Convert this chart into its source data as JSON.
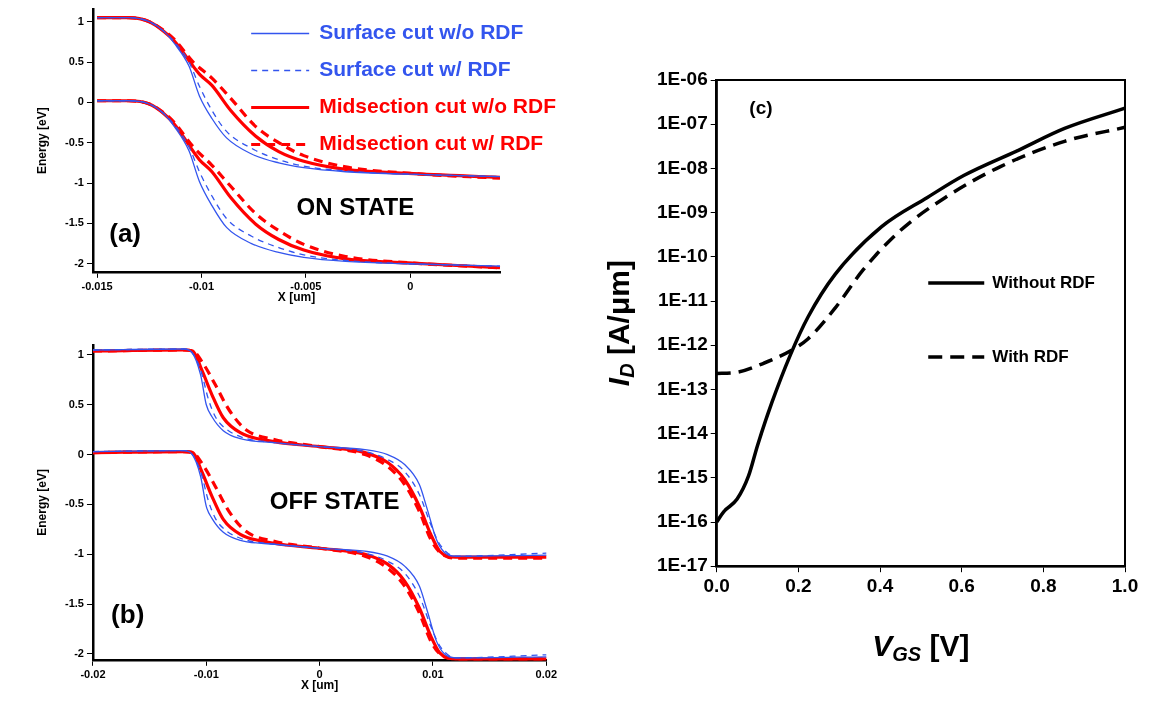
{
  "chart_data": [
    {
      "type": "line",
      "xlabel": "X [um]",
      "ylabel": "Energy [eV]",
      "legend": "top right",
      "grid": false,
      "annotations": [
        "(a)",
        "ON STATE"
      ],
      "xlim": [
        -0.0152,
        0.0043
      ],
      "xticks": [
        -0.015,
        -0.01,
        -0.005,
        0
      ],
      "ylim": [
        -2.1,
        1.15
      ],
      "yticks": [
        -2,
        -1.5,
        -1,
        -0.5,
        0,
        0.5,
        1
      ],
      "series": [
        {
          "name": "Surface cut w/o RDF",
          "color": "#3355ee",
          "line_style": "solid",
          "x": [
            -0.015,
            -0.0135,
            -0.0125,
            -0.0118,
            -0.0113,
            -0.0106,
            -0.0101,
            -0.0095,
            -0.0088,
            -0.0076,
            -0.0063,
            -0.0051,
            -0.0031,
            -0.0001,
            0.0043
          ],
          "values": [
            1.05,
            1.05,
            1.0,
            0.88,
            0.73,
            0.45,
            0.08,
            -0.2,
            -0.44,
            -0.64,
            -0.75,
            -0.81,
            -0.86,
            -0.89,
            -0.92
          ]
        },
        {
          "name": "Surface cut w/ RDF",
          "color": "#3355ee",
          "line_style": "dashed",
          "x": [
            -0.015,
            -0.0135,
            -0.0125,
            -0.0118,
            -0.0113,
            -0.0106,
            -0.0101,
            -0.0095,
            -0.0088,
            -0.0076,
            -0.0063,
            -0.0051,
            -0.0031,
            -0.0001,
            0.0043
          ],
          "values": [
            1.05,
            1.05,
            1.0,
            0.88,
            0.75,
            0.5,
            0.2,
            -0.1,
            -0.36,
            -0.57,
            -0.71,
            -0.79,
            -0.85,
            -0.89,
            -0.92
          ]
        },
        {
          "name": "Midsection cut w/o RDF",
          "color": "#ff0000",
          "line_style": "solid",
          "x": [
            -0.015,
            -0.0135,
            -0.0125,
            -0.0118,
            -0.0113,
            -0.0101,
            -0.0095,
            -0.0086,
            -0.0074,
            -0.0063,
            -0.0051,
            -0.0031,
            -0.0001,
            0.0043
          ],
          "values": [
            1.05,
            1.05,
            1.0,
            0.88,
            0.76,
            0.35,
            0.21,
            -0.1,
            -0.42,
            -0.61,
            -0.73,
            -0.83,
            -0.88,
            -0.93
          ]
        },
        {
          "name": "Midsection cut w/ RDF",
          "color": "#ff0000",
          "line_style": "dashed",
          "x": [
            -0.015,
            -0.0135,
            -0.0125,
            -0.0118,
            -0.0113,
            -0.0104,
            -0.0095,
            -0.0086,
            -0.0074,
            -0.0063,
            -0.0051,
            -0.0031,
            0,
            0.0043
          ],
          "values": [
            1.05,
            1.05,
            1.0,
            0.89,
            0.78,
            0.5,
            0.3,
            0.05,
            -0.3,
            -0.5,
            -0.66,
            -0.8,
            -0.88,
            -0.94
          ]
        },
        {
          "color": "#3355ee",
          "line_style": "solid",
          "x": [
            -0.015,
            -0.0135,
            -0.0125,
            -0.0118,
            -0.0113,
            -0.0106,
            -0.0101,
            -0.0095,
            -0.0088,
            -0.0076,
            -0.0063,
            -0.0051,
            -0.0031,
            -0.0001,
            0.0043
          ],
          "values": [
            0.02,
            0.02,
            -0.02,
            -0.14,
            -0.3,
            -0.6,
            -0.98,
            -1.28,
            -1.55,
            -1.75,
            -1.86,
            -1.92,
            -1.97,
            -2.0,
            -2.03
          ]
        },
        {
          "color": "#3355ee",
          "line_style": "dashed",
          "x": [
            -0.015,
            -0.0135,
            -0.0125,
            -0.0118,
            -0.0113,
            -0.0106,
            -0.0101,
            -0.0095,
            -0.0088,
            -0.0076,
            -0.0063,
            -0.0051,
            -0.0031,
            -0.0001,
            0.0043
          ],
          "values": [
            0.02,
            0.02,
            -0.02,
            -0.14,
            -0.28,
            -0.55,
            -0.86,
            -1.16,
            -1.44,
            -1.66,
            -1.8,
            -1.89,
            -1.96,
            -2.0,
            -2.03
          ]
        },
        {
          "color": "#ff0000",
          "line_style": "solid",
          "x": [
            -0.015,
            -0.0135,
            -0.0125,
            -0.0118,
            -0.0113,
            -0.0101,
            -0.0095,
            -0.0086,
            -0.0074,
            -0.0063,
            -0.0051,
            -0.0031,
            -0.0001,
            0.0043
          ],
          "values": [
            0.02,
            0.02,
            -0.02,
            -0.14,
            -0.27,
            -0.71,
            -0.86,
            -1.18,
            -1.51,
            -1.7,
            -1.83,
            -1.94,
            -1.99,
            -2.05
          ]
        },
        {
          "color": "#ff0000",
          "line_style": "dashed",
          "x": [
            -0.015,
            -0.0135,
            -0.0125,
            -0.0118,
            -0.0113,
            -0.0104,
            -0.0095,
            -0.0086,
            -0.0074,
            -0.0063,
            -0.0051,
            -0.0031,
            0,
            0.0043
          ],
          "values": [
            0.02,
            0.02,
            -0.02,
            -0.13,
            -0.25,
            -0.55,
            -0.78,
            -1.04,
            -1.38,
            -1.59,
            -1.76,
            -1.91,
            -1.99,
            -2.05
          ]
        }
      ]
    },
    {
      "type": "line",
      "xlabel": "X [um]",
      "ylabel": "Energy [eV]",
      "grid": false,
      "annotations": [
        "(b)",
        "OFF STATE"
      ],
      "xlim": [
        -0.02,
        0.02
      ],
      "xticks": [
        -0.02,
        -0.01,
        0,
        0.01,
        0.02
      ],
      "ylim": [
        -2.06,
        1.1
      ],
      "yticks": [
        -2,
        -1.5,
        -1,
        -0.5,
        0,
        0.5,
        1
      ],
      "series": [
        {
          "color": "#3355ee",
          "line_style": "solid",
          "x": [
            -0.02,
            -0.012,
            -0.0113,
            -0.0105,
            -0.01,
            -0.0095,
            -0.0085,
            -0.007,
            -0.004,
            0,
            0.004,
            0.006,
            0.0075,
            0.0088,
            0.0095,
            0.0103,
            0.011,
            0.012,
            0.02
          ],
          "values": [
            1.05,
            1.06,
            1.03,
            0.8,
            0.5,
            0.38,
            0.24,
            0.16,
            0.12,
            0.08,
            0.05,
            0,
            -0.1,
            -0.3,
            -0.55,
            -0.85,
            -0.98,
            -1.02,
            -1.01
          ]
        },
        {
          "color": "#3355ee",
          "line_style": "dashed",
          "x": [
            -0.02,
            -0.012,
            -0.0113,
            -0.0105,
            -0.0098,
            -0.0092,
            -0.0085,
            -0.007,
            -0.004,
            0,
            0.004,
            0.006,
            0.0075,
            0.0088,
            0.0098,
            0.0106,
            0.012,
            0.02
          ],
          "values": [
            1.05,
            1.06,
            1.03,
            0.85,
            0.55,
            0.38,
            0.28,
            0.18,
            0.12,
            0.08,
            0.03,
            -0.05,
            -0.17,
            -0.4,
            -0.7,
            -0.9,
            -1.02,
            -0.99
          ]
        },
        {
          "color": "#ff0000",
          "line_style": "solid",
          "x": [
            -0.02,
            -0.012,
            -0.0112,
            -0.0104,
            -0.0095,
            -0.0085,
            -0.007,
            -0.004,
            0,
            0.004,
            0.006,
            0.0075,
            0.0088,
            0.0098,
            0.0106,
            0.012,
            0.02
          ],
          "values": [
            1.04,
            1.05,
            1.04,
            0.85,
            0.6,
            0.37,
            0.22,
            0.13,
            0.08,
            0.02,
            -0.08,
            -0.25,
            -0.52,
            -0.8,
            -0.97,
            -1.03,
            -1.03
          ]
        },
        {
          "color": "#ff0000",
          "line_style": "dashed",
          "x": [
            -0.02,
            -0.012,
            -0.0112,
            -0.0102,
            -0.0092,
            -0.008,
            -0.0065,
            -0.004,
            0,
            0.004,
            0.006,
            0.0075,
            0.0088,
            0.0098,
            0.0106,
            0.012,
            0.02
          ],
          "values": [
            1.04,
            1.05,
            1.04,
            0.9,
            0.7,
            0.45,
            0.25,
            0.15,
            0.08,
            0,
            -0.12,
            -0.3,
            -0.57,
            -0.85,
            -0.98,
            -1.04,
            -1.04
          ]
        },
        {
          "color": "#3355ee",
          "line_style": "solid",
          "x": [
            -0.02,
            -0.012,
            -0.0113,
            -0.0105,
            -0.01,
            -0.0095,
            -0.0085,
            -0.007,
            -0.004,
            0,
            0.004,
            0.006,
            0.0075,
            0.0088,
            0.0095,
            0.0103,
            0.011,
            0.012,
            0.02
          ],
          "values": [
            0.03,
            0.04,
            0.01,
            -0.22,
            -0.52,
            -0.64,
            -0.78,
            -0.86,
            -0.9,
            -0.94,
            -0.97,
            -1.02,
            -1.12,
            -1.32,
            -1.57,
            -1.87,
            -2.0,
            -2.04,
            -2.03
          ]
        },
        {
          "color": "#3355ee",
          "line_style": "dashed",
          "x": [
            -0.02,
            -0.012,
            -0.0113,
            -0.0105,
            -0.0098,
            -0.0092,
            -0.0085,
            -0.007,
            -0.004,
            0,
            0.004,
            0.006,
            0.0075,
            0.0088,
            0.0098,
            0.0106,
            0.012,
            0.02
          ],
          "values": [
            0.03,
            0.04,
            0.01,
            -0.17,
            -0.47,
            -0.64,
            -0.74,
            -0.84,
            -0.9,
            -0.94,
            -0.99,
            -1.07,
            -1.19,
            -1.42,
            -1.72,
            -1.92,
            -2.04,
            -2.01
          ]
        },
        {
          "color": "#ff0000",
          "line_style": "solid",
          "x": [
            -0.02,
            -0.012,
            -0.0112,
            -0.0104,
            -0.0095,
            -0.0085,
            -0.007,
            -0.004,
            0,
            0.004,
            0.006,
            0.0075,
            0.0088,
            0.0098,
            0.0106,
            0.012,
            0.02
          ],
          "values": [
            0.02,
            0.03,
            0.02,
            -0.17,
            -0.42,
            -0.65,
            -0.8,
            -0.89,
            -0.94,
            -1.0,
            -1.1,
            -1.27,
            -1.54,
            -1.82,
            -1.99,
            -2.05,
            -2.05
          ]
        },
        {
          "color": "#ff0000",
          "line_style": "dashed",
          "x": [
            -0.02,
            -0.012,
            -0.0112,
            -0.0102,
            -0.0092,
            -0.008,
            -0.0065,
            -0.004,
            0,
            0.004,
            0.006,
            0.0075,
            0.0088,
            0.0098,
            0.0106,
            0.012,
            0.02
          ],
          "values": [
            0.02,
            0.03,
            0.02,
            -0.12,
            -0.32,
            -0.57,
            -0.77,
            -0.87,
            -0.94,
            -1.02,
            -1.14,
            -1.32,
            -1.59,
            -1.87,
            -2.0,
            -2.05,
            -2.05
          ]
        }
      ]
    },
    {
      "type": "line",
      "xlabel": "V$_{GS}$ [V]",
      "ylabel": "I$_{D}$ [A/μm]",
      "legend": "right",
      "grid": false,
      "log": true,
      "annotations": [
        "(c)"
      ],
      "xlim": [
        0,
        1
      ],
      "xticks": [
        {
          "value": 0,
          "label": "0.0"
        },
        {
          "value": 0.2,
          "label": "0.2"
        },
        {
          "value": 0.4,
          "label": "0.4"
        },
        {
          "value": 0.6,
          "label": "0.6"
        },
        {
          "value": 0.8,
          "label": "0.8"
        },
        {
          "value": 1,
          "label": "1.0"
        }
      ],
      "ylim": [
        1e-17,
        1e-06
      ],
      "yticks": [
        {
          "value": 1e-17,
          "label": "1E-17"
        },
        {
          "value": 1e-16,
          "label": "1E-16"
        },
        {
          "value": 1e-15,
          "label": "1E-15"
        },
        {
          "value": 1e-14,
          "label": "1E-14"
        },
        {
          "value": 1e-13,
          "label": "1E-13"
        },
        {
          "value": 1e-12,
          "label": "1E-12"
        },
        {
          "value": 1e-11,
          "label": "1E-11"
        },
        {
          "value": 1e-10,
          "label": "1E-10"
        },
        {
          "value": 1e-09,
          "label": "1E-09"
        },
        {
          "value": 1e-08,
          "label": "1E-08"
        },
        {
          "value": 1e-07,
          "label": "1E-07"
        },
        {
          "value": 1e-06,
          "label": "1E-06"
        }
      ],
      "series": [
        {
          "name": "Without RDF",
          "color": "#000000",
          "line_style": "solid",
          "x": [
            0,
            0.017,
            0.05,
            0.078,
            0.1,
            0.135,
            0.18,
            0.224,
            0.29,
            0.404,
            0.516,
            0.605,
            0.74,
            0.852,
            1.0
          ],
          "values": [
            1e-16,
            1.7e-16,
            3.3e-16,
            1.1e-15,
            5.4e-15,
            5e-14,
            5.9e-13,
            4.4e-12,
            4e-11,
            4.8e-10,
            2.2e-09,
            6.9e-09,
            2.6e-08,
            8e-08,
            2.3e-07
          ]
        },
        {
          "name": "With RDF",
          "color": "#000000",
          "line_style": "dashed",
          "x": [
            0,
            0.045,
            0.112,
            0.18,
            0.224,
            0.29,
            0.359,
            0.448,
            0.56,
            0.695,
            0.852,
            1.0
          ],
          "values": [
            2.3e-13,
            2.4e-13,
            3.8e-13,
            7.4e-13,
            1.4e-12,
            6.9e-12,
            5.1e-11,
            3.8e-10,
            2.2e-09,
            1.1e-08,
            4.1e-08,
            8.5e-08
          ]
        }
      ]
    }
  ]
}
